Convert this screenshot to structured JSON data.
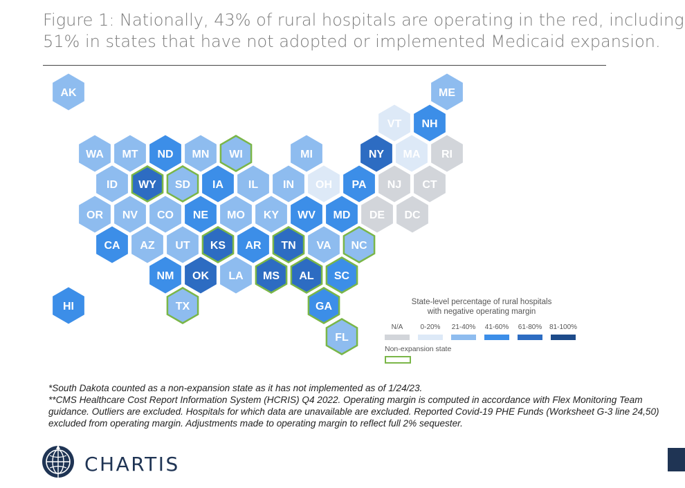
{
  "title": {
    "line1": "Figure 1: Nationally, 43% of rural hospitals are operating in the red, including",
    "line2": "51% in states that have not adopted or implemented Medicaid expansion."
  },
  "colors": {
    "na": "#d2d5da",
    "b0_20": "#dde9f7",
    "b21_40": "#8ebcef",
    "b41_60": "#3c8ee8",
    "b61_80": "#2d6cc2",
    "b81_100": "#1d4b8a",
    "non_expansion_outline": "#7ab648",
    "label_light": "#ffffff"
  },
  "states": [
    {
      "abbr": "AK",
      "bin": "b21_40",
      "nonexp": false
    },
    {
      "abbr": "ME",
      "bin": "b21_40",
      "nonexp": false
    },
    {
      "abbr": "VT",
      "bin": "b0_20",
      "nonexp": false
    },
    {
      "abbr": "NH",
      "bin": "b41_60",
      "nonexp": false
    },
    {
      "abbr": "WA",
      "bin": "b21_40",
      "nonexp": false
    },
    {
      "abbr": "MT",
      "bin": "b21_40",
      "nonexp": false
    },
    {
      "abbr": "ND",
      "bin": "b41_60",
      "nonexp": false
    },
    {
      "abbr": "MN",
      "bin": "b21_40",
      "nonexp": false
    },
    {
      "abbr": "WI",
      "bin": "b21_40",
      "nonexp": true
    },
    {
      "abbr": "MI",
      "bin": "b21_40",
      "nonexp": false
    },
    {
      "abbr": "NY",
      "bin": "b61_80",
      "nonexp": false
    },
    {
      "abbr": "MA",
      "bin": "b0_20",
      "nonexp": false
    },
    {
      "abbr": "RI",
      "bin": "na",
      "nonexp": false
    },
    {
      "abbr": "ID",
      "bin": "b21_40",
      "nonexp": false
    },
    {
      "abbr": "WY",
      "bin": "b61_80",
      "nonexp": true
    },
    {
      "abbr": "SD",
      "bin": "b21_40",
      "nonexp": true
    },
    {
      "abbr": "IA",
      "bin": "b41_60",
      "nonexp": false
    },
    {
      "abbr": "IL",
      "bin": "b21_40",
      "nonexp": false
    },
    {
      "abbr": "IN",
      "bin": "b21_40",
      "nonexp": false
    },
    {
      "abbr": "OH",
      "bin": "b0_20",
      "nonexp": false
    },
    {
      "abbr": "PA",
      "bin": "b41_60",
      "nonexp": false
    },
    {
      "abbr": "NJ",
      "bin": "na",
      "nonexp": false
    },
    {
      "abbr": "CT",
      "bin": "na",
      "nonexp": false
    },
    {
      "abbr": "OR",
      "bin": "b21_40",
      "nonexp": false
    },
    {
      "abbr": "NV",
      "bin": "b21_40",
      "nonexp": false
    },
    {
      "abbr": "CO",
      "bin": "b21_40",
      "nonexp": false
    },
    {
      "abbr": "NE",
      "bin": "b41_60",
      "nonexp": false
    },
    {
      "abbr": "MO",
      "bin": "b21_40",
      "nonexp": false
    },
    {
      "abbr": "KY",
      "bin": "b21_40",
      "nonexp": false
    },
    {
      "abbr": "WV",
      "bin": "b41_60",
      "nonexp": false
    },
    {
      "abbr": "MD",
      "bin": "b41_60",
      "nonexp": false
    },
    {
      "abbr": "DE",
      "bin": "na",
      "nonexp": false
    },
    {
      "abbr": "DC",
      "bin": "na",
      "nonexp": false
    },
    {
      "abbr": "CA",
      "bin": "b41_60",
      "nonexp": false
    },
    {
      "abbr": "AZ",
      "bin": "b21_40",
      "nonexp": false
    },
    {
      "abbr": "UT",
      "bin": "b21_40",
      "nonexp": false
    },
    {
      "abbr": "KS",
      "bin": "b61_80",
      "nonexp": true
    },
    {
      "abbr": "AR",
      "bin": "b41_60",
      "nonexp": false
    },
    {
      "abbr": "TN",
      "bin": "b61_80",
      "nonexp": true
    },
    {
      "abbr": "VA",
      "bin": "b21_40",
      "nonexp": false
    },
    {
      "abbr": "NC",
      "bin": "b21_40",
      "nonexp": true
    },
    {
      "abbr": "NM",
      "bin": "b41_60",
      "nonexp": false
    },
    {
      "abbr": "OK",
      "bin": "b61_80",
      "nonexp": false
    },
    {
      "abbr": "LA",
      "bin": "b21_40",
      "nonexp": false
    },
    {
      "abbr": "MS",
      "bin": "b61_80",
      "nonexp": true
    },
    {
      "abbr": "AL",
      "bin": "b61_80",
      "nonexp": true
    },
    {
      "abbr": "SC",
      "bin": "b41_60",
      "nonexp": true
    },
    {
      "abbr": "HI",
      "bin": "b41_60",
      "nonexp": false
    },
    {
      "abbr": "TX",
      "bin": "b21_40",
      "nonexp": true
    },
    {
      "abbr": "GA",
      "bin": "b41_60",
      "nonexp": true
    },
    {
      "abbr": "FL",
      "bin": "b21_40",
      "nonexp": true
    }
  ],
  "legend": {
    "title_line1": "State-level percentage of rural hospitals",
    "title_line2": "with negative operating margin",
    "items": [
      {
        "label": "N/A",
        "bin": "na"
      },
      {
        "label": "0-20%",
        "bin": "b0_20"
      },
      {
        "label": "21-40%",
        "bin": "b21_40"
      },
      {
        "label": "41-60%",
        "bin": "b41_60"
      },
      {
        "label": "61-80%",
        "bin": "b61_80"
      },
      {
        "label": "81-100%",
        "bin": "b81_100"
      }
    ],
    "non_expansion_label": "Non-expansion state"
  },
  "notes": {
    "line1": "*South Dakota counted as a non-expansion state as it has not implemented as of 1/24/23.",
    "line2": "**CMS Healthcare Cost Report Information System (HCRIS) Q4 2022. Operating margin is computed in accordance with Flex Monitoring Team guidance. Outliers are excluded. Hospitals for which data are unavailable are excluded. Reported Covid-19 PHE Funds (Worksheet G-3 line 24,50) excluded from operating margin. Adjustments made to operating margin to reflect full 2% sequester."
  },
  "brand": {
    "logo_text": "CHARTIS",
    "logo_icon": "compass-globe-icon",
    "brand_color": "#1f3454"
  }
}
